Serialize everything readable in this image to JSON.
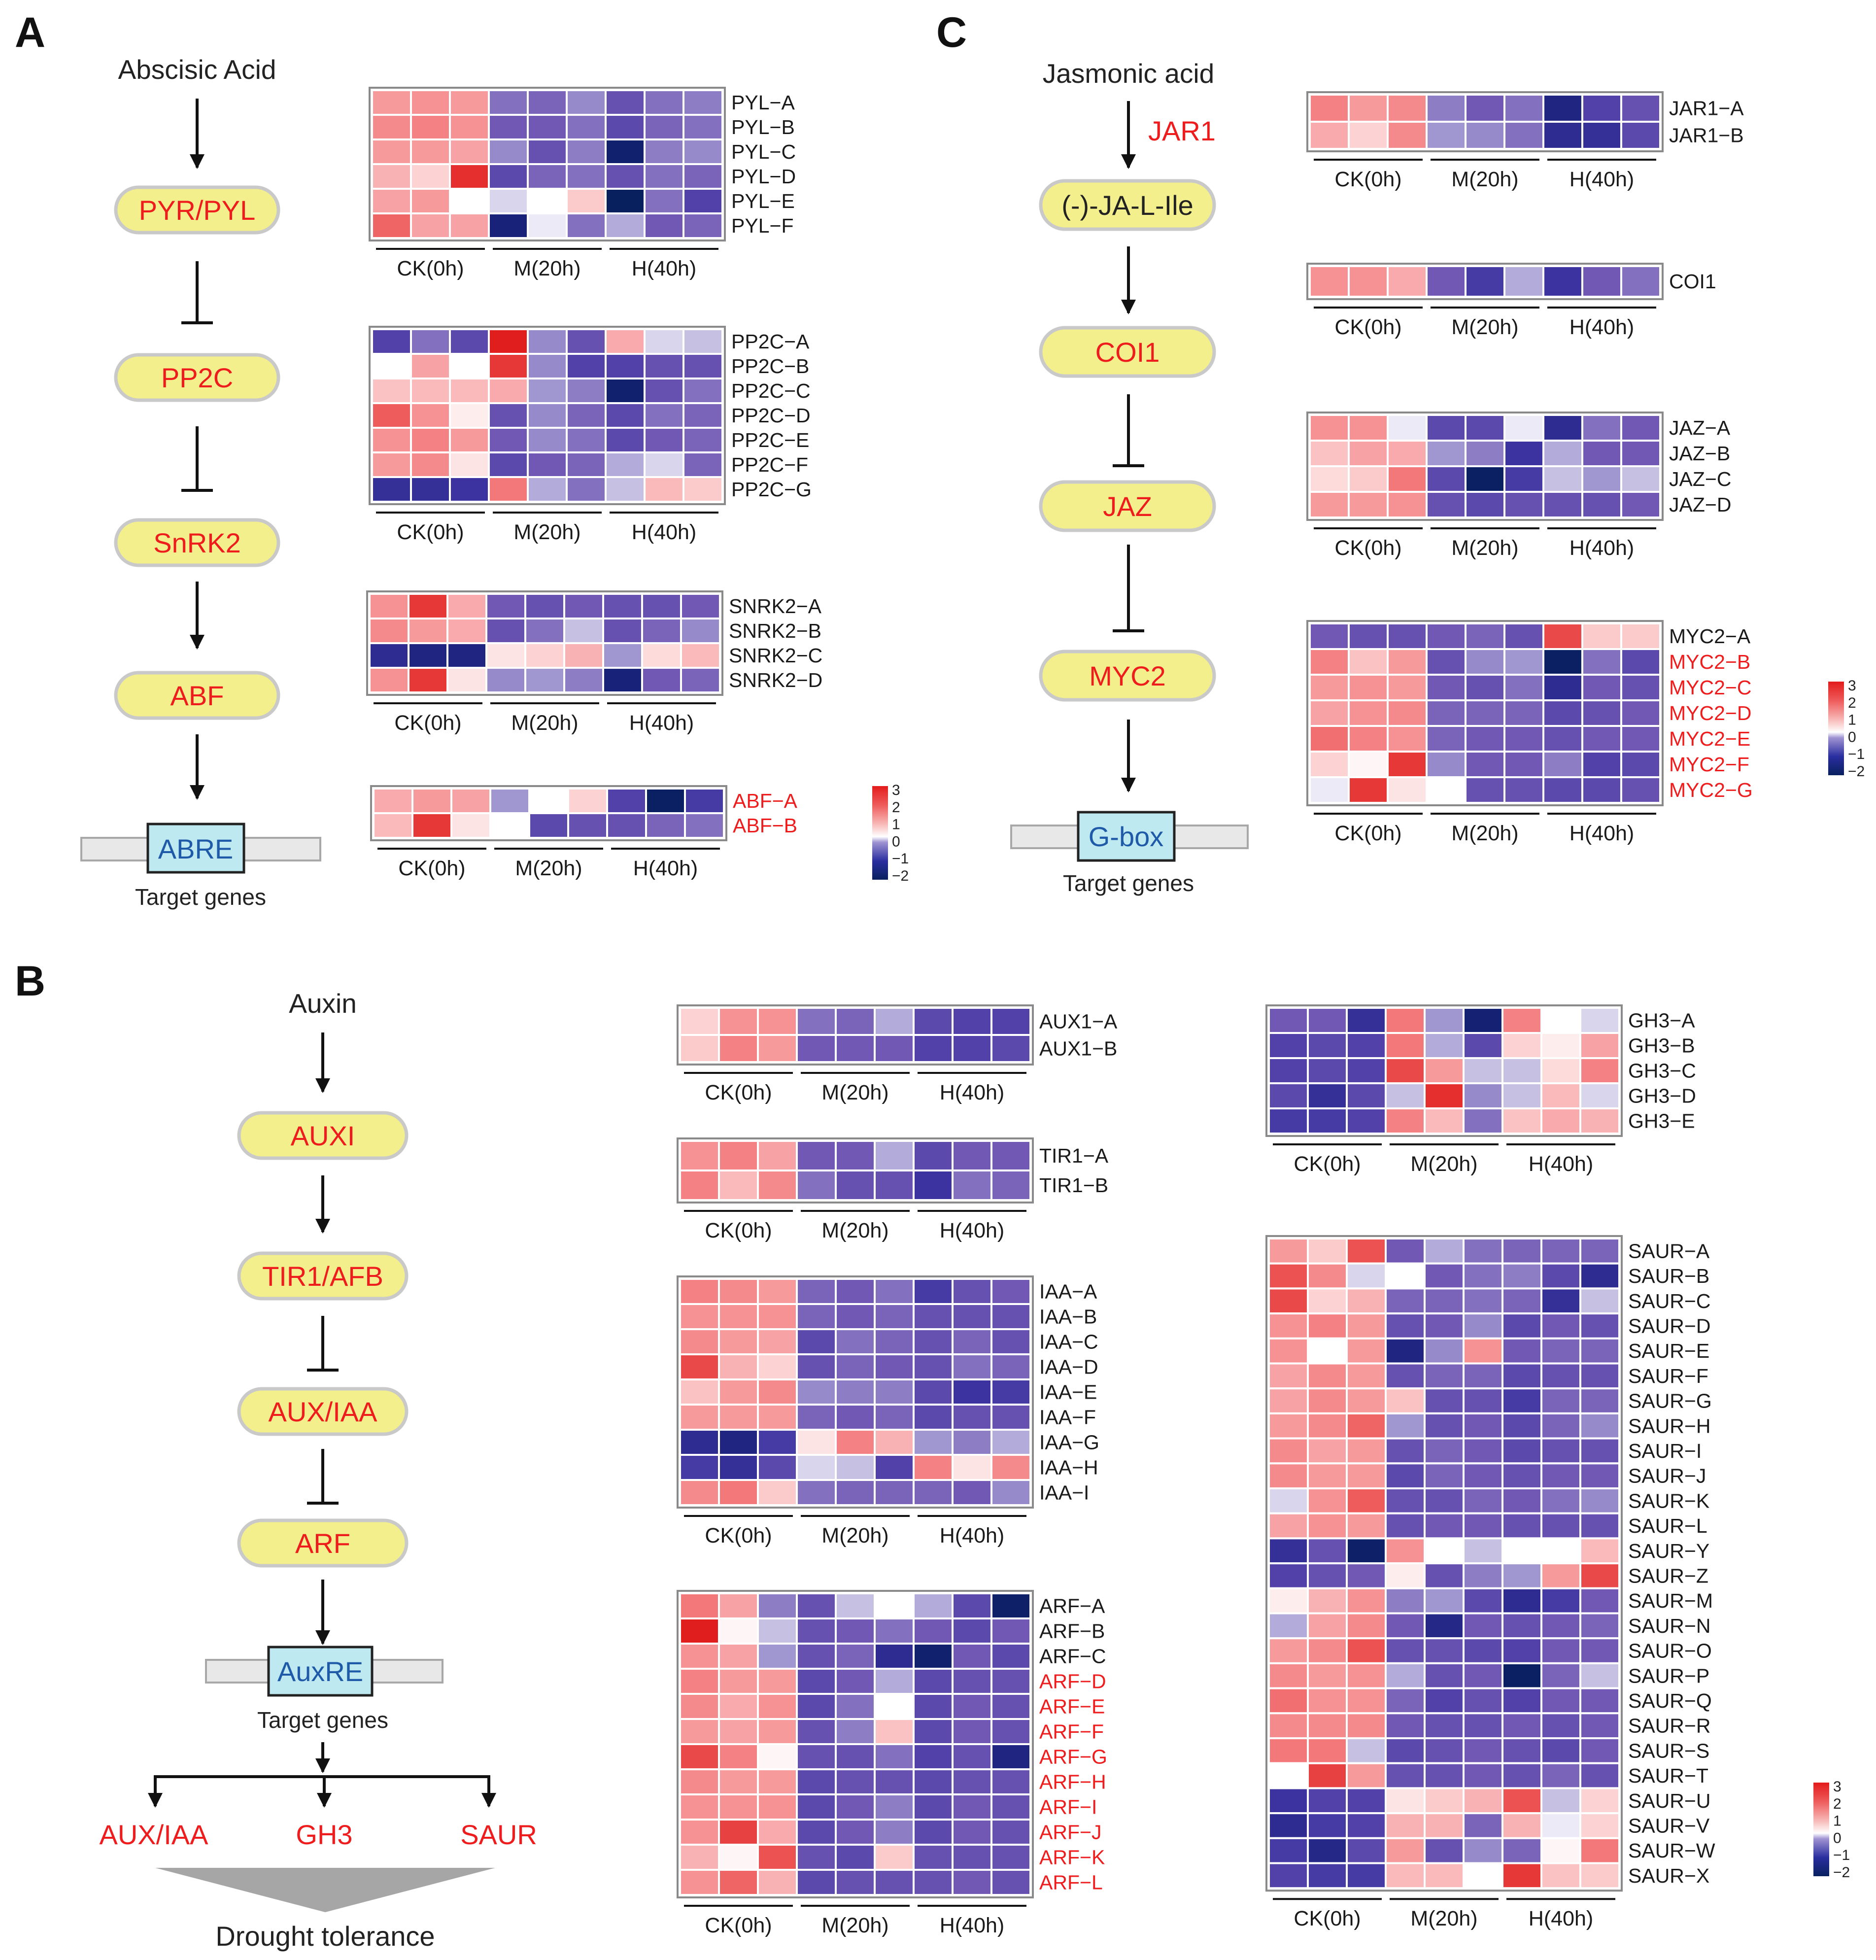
{
  "panels": {
    "A": {
      "label": "A",
      "signal": "Abscisic Acid",
      "nodes": [
        "PYR/PYL",
        "PP2C",
        "SnRK2",
        "ABF"
      ],
      "element": "ABRE",
      "target": "Target genes"
    },
    "B": {
      "label": "B",
      "signal": "Auxin",
      "nodes": [
        "AUXI",
        "TIR1/AFB",
        "AUX/IAA",
        "ARF"
      ],
      "element": "AuxRE",
      "target": "Target genes",
      "outputs": [
        "AUX/IAA",
        "GH3",
        "SAUR"
      ],
      "outcome": "Drought tolerance"
    },
    "C": {
      "label": "C",
      "signal": "Jasmonic acid",
      "enzyme": "JAR1",
      "nodes": [
        "(-)-JA-L-Ile",
        "COI1",
        "JAZ",
        "MYC2"
      ],
      "element": "G-box",
      "target": "Target genes"
    }
  },
  "groups": [
    "CK(0h)",
    "M(20h)",
    "H(40h)"
  ],
  "legend_ticks": [
    "3",
    "2",
    "1",
    "0",
    "−1",
    "−2"
  ],
  "heatmaps": [
    {
      "id": "pyl",
      "genes": [
        "PYL−A",
        "PYL−B",
        "PYL−C",
        "PYL−D",
        "PYL−E",
        "PYL−F"
      ],
      "red_genes": [],
      "values": [
        [
          1.2,
          1.3,
          1.2,
          -0.8,
          -0.9,
          -0.6,
          -1.1,
          -0.8,
          -0.7
        ],
        [
          1.4,
          1.5,
          1.3,
          -1.0,
          -1.0,
          -0.8,
          -1.2,
          -0.9,
          -0.8
        ],
        [
          1.2,
          1.2,
          1.1,
          -0.6,
          -1.1,
          -0.7,
          -2.2,
          -0.7,
          -0.6
        ],
        [
          0.9,
          0.5,
          2.4,
          -1.2,
          -0.9,
          -0.8,
          -1.1,
          -0.8,
          -0.9
        ],
        [
          1.1,
          1.2,
          0.0,
          -0.2,
          0.0,
          0.6,
          -2.6,
          -0.8,
          -1.3
        ],
        [
          1.8,
          1.1,
          1.1,
          -2.0,
          -0.1,
          -0.8,
          -0.4,
          -1.0,
          -0.9
        ]
      ]
    },
    {
      "id": "pp2c",
      "genes": [
        "PP2C−A",
        "PP2C−B",
        "PP2C−C",
        "PP2C−D",
        "PP2C−E",
        "PP2C−F",
        "PP2C−G"
      ],
      "red_genes": [],
      "values": [
        [
          -1.3,
          -0.8,
          -1.2,
          2.6,
          -0.6,
          -1.1,
          1.0,
          -0.2,
          -0.3
        ],
        [
          0.0,
          1.1,
          0.0,
          2.3,
          -0.6,
          -1.3,
          -1.3,
          -1.1,
          -1.1
        ],
        [
          0.7,
          0.8,
          0.8,
          1.0,
          -0.5,
          -0.7,
          -2.2,
          -1.1,
          -0.8
        ],
        [
          1.9,
          1.3,
          0.2,
          -1.1,
          -0.6,
          -0.9,
          -1.2,
          -0.8,
          -0.9
        ],
        [
          1.3,
          1.5,
          1.2,
          -1.0,
          -0.6,
          -0.8,
          -1.2,
          -1.0,
          -0.9
        ],
        [
          1.2,
          1.4,
          0.3,
          -1.2,
          -1.0,
          -0.9,
          -0.4,
          -0.2,
          -0.9
        ],
        [
          -1.6,
          -1.6,
          -1.5,
          1.6,
          -0.4,
          -0.8,
          -0.3,
          0.8,
          0.6
        ]
      ]
    },
    {
      "id": "snrk2",
      "genes": [
        "SNRK2−A",
        "SNRK2−B",
        "SNRK2−C",
        "SNRK2−D"
      ],
      "red_genes": [],
      "values": [
        [
          1.3,
          2.3,
          1.0,
          -1.0,
          -1.1,
          -1.0,
          -1.1,
          -1.1,
          -1.0
        ],
        [
          1.4,
          1.2,
          1.0,
          -1.1,
          -0.8,
          -0.3,
          -1.1,
          -0.9,
          -0.6
        ],
        [
          -1.7,
          -1.9,
          -1.9,
          0.3,
          0.5,
          0.9,
          -0.5,
          0.4,
          0.8
        ],
        [
          1.3,
          2.3,
          0.3,
          -0.6,
          -0.5,
          -0.7,
          -2.0,
          -1.0,
          -0.9
        ]
      ]
    },
    {
      "id": "abf",
      "genes": [
        "ABF−A",
        "ABF−B"
      ],
      "red_genes": [
        "ABF−A",
        "ABF−B"
      ],
      "values": [
        [
          1.0,
          1.2,
          1.1,
          -0.5,
          0.0,
          0.5,
          -1.3,
          -2.4,
          -1.4
        ],
        [
          0.8,
          2.3,
          0.3,
          0.0,
          -1.2,
          -1.1,
          -1.1,
          -0.9,
          -0.8
        ]
      ]
    },
    {
      "id": "jar1",
      "genes": [
        "JAR1−A",
        "JAR1−B"
      ],
      "red_genes": [],
      "values": [
        [
          1.5,
          1.2,
          1.4,
          -0.7,
          -1.0,
          -0.8,
          -1.9,
          -1.3,
          -1.1
        ],
        [
          1.0,
          0.5,
          1.4,
          -0.5,
          -0.6,
          -0.8,
          -1.7,
          -1.6,
          -1.2
        ]
      ]
    },
    {
      "id": "coi1",
      "genes": [
        "COI1"
      ],
      "red_genes": [],
      "values": [
        [
          1.3,
          1.3,
          1.0,
          -1.0,
          -1.4,
          -0.4,
          -1.5,
          -1.0,
          -0.8
        ]
      ]
    },
    {
      "id": "jaz",
      "genes": [
        "JAZ−A",
        "JAZ−B",
        "JAZ−C",
        "JAZ−D"
      ],
      "red_genes": [],
      "values": [
        [
          1.3,
          1.3,
          -0.1,
          -1.2,
          -1.2,
          -0.1,
          -1.7,
          -0.8,
          -1.0
        ],
        [
          0.7,
          1.1,
          1.0,
          -0.5,
          -0.7,
          -1.5,
          -0.4,
          -1.0,
          -1.0
        ],
        [
          0.4,
          0.6,
          1.6,
          -1.2,
          -2.4,
          -1.4,
          -0.3,
          -0.5,
          -0.3
        ],
        [
          1.2,
          1.2,
          1.3,
          -1.1,
          -1.2,
          -1.1,
          -1.1,
          -1.1,
          -1.0
        ]
      ]
    },
    {
      "id": "myc2",
      "genes": [
        "MYC2−A",
        "MYC2−B",
        "MYC2−C",
        "MYC2−D",
        "MYC2−E",
        "MYC2−F",
        "MYC2−G"
      ],
      "red_genes": [
        "MYC2−B",
        "MYC2−C",
        "MYC2−D",
        "MYC2−E",
        "MYC2−F",
        "MYC2−G"
      ],
      "values": [
        [
          -1.0,
          -1.1,
          -1.1,
          -1.0,
          -0.9,
          -1.1,
          2.1,
          0.6,
          0.6
        ],
        [
          1.5,
          0.7,
          1.2,
          -1.1,
          -0.6,
          -0.5,
          -2.4,
          -0.8,
          -1.2
        ],
        [
          1.2,
          1.3,
          1.2,
          -1.0,
          -1.1,
          -0.8,
          -1.7,
          -1.0,
          -1.1
        ],
        [
          1.1,
          1.3,
          1.4,
          -0.9,
          -0.9,
          -0.9,
          -1.2,
          -1.1,
          -1.0
        ],
        [
          1.7,
          1.5,
          1.3,
          -0.9,
          -1.0,
          -1.0,
          -1.1,
          -1.0,
          -1.0
        ],
        [
          0.5,
          0.1,
          2.3,
          -0.6,
          -1.0,
          -1.0,
          -0.7,
          -1.3,
          -1.2
        ],
        [
          -0.1,
          2.3,
          0.3,
          0.0,
          -1.1,
          -1.1,
          -1.2,
          -1.2,
          -1.1
        ]
      ]
    },
    {
      "id": "aux1",
      "genes": [
        "AUX1−A",
        "AUX1−B"
      ],
      "red_genes": [],
      "values": [
        [
          0.5,
          1.3,
          1.3,
          -0.8,
          -0.9,
          -0.4,
          -1.2,
          -1.3,
          -1.3
        ],
        [
          0.6,
          1.5,
          1.2,
          -1.0,
          -1.0,
          -1.0,
          -1.3,
          -1.3,
          -1.2
        ]
      ]
    },
    {
      "id": "tir1",
      "genes": [
        "TIR1−A",
        "TIR1−B"
      ],
      "red_genes": [],
      "values": [
        [
          1.3,
          1.5,
          1.1,
          -1.0,
          -1.0,
          -0.4,
          -1.2,
          -1.0,
          -1.0
        ],
        [
          1.5,
          0.8,
          1.4,
          -0.8,
          -1.1,
          -1.1,
          -1.5,
          -0.8,
          -0.9
        ]
      ]
    },
    {
      "id": "iaa",
      "genes": [
        "IAA−A",
        "IAA−B",
        "IAA−C",
        "IAA−D",
        "IAA−E",
        "IAA−F",
        "IAA−G",
        "IAA−H",
        "IAA−I"
      ],
      "red_genes": [],
      "values": [
        [
          1.5,
          1.4,
          1.2,
          -0.9,
          -1.0,
          -0.8,
          -1.4,
          -1.1,
          -1.0
        ],
        [
          1.3,
          1.3,
          1.3,
          -0.9,
          -1.0,
          -0.9,
          -1.1,
          -1.1,
          -1.1
        ],
        [
          1.4,
          1.2,
          1.1,
          -1.2,
          -0.8,
          -0.9,
          -1.1,
          -0.9,
          -1.1
        ],
        [
          2.1,
          0.9,
          0.5,
          -1.1,
          -0.9,
          -1.0,
          -1.1,
          -0.8,
          -0.9
        ],
        [
          0.7,
          1.2,
          1.4,
          -0.6,
          -0.7,
          -0.7,
          -1.2,
          -1.5,
          -1.4
        ],
        [
          1.2,
          1.2,
          1.2,
          -0.9,
          -1.0,
          -0.9,
          -1.2,
          -1.1,
          -1.1
        ],
        [
          -1.7,
          -1.9,
          -1.4,
          0.3,
          1.5,
          0.9,
          -0.5,
          -0.7,
          -0.4
        ],
        [
          -1.4,
          -1.6,
          -1.2,
          -0.2,
          -0.3,
          -1.3,
          1.5,
          0.3,
          1.4
        ],
        [
          1.4,
          1.6,
          0.6,
          -0.8,
          -0.9,
          -0.9,
          -0.9,
          -1.0,
          -0.6
        ]
      ]
    },
    {
      "id": "arf",
      "genes": [
        "ARF−A",
        "ARF−B",
        "ARF−C",
        "ARF−D",
        "ARF−E",
        "ARF−F",
        "ARF−G",
        "ARF−H",
        "ARF−I",
        "ARF−J",
        "ARF−K",
        "ARF−L"
      ],
      "red_genes": [
        "ARF−D",
        "ARF−E",
        "ARF−F",
        "ARF−G",
        "ARF−H",
        "ARF−I",
        "ARF−J",
        "ARF−K",
        "ARF−L"
      ],
      "values": [
        [
          1.6,
          1.1,
          -0.7,
          -1.1,
          -0.3,
          0.0,
          -0.4,
          -1.2,
          -2.3
        ],
        [
          2.6,
          0.1,
          -0.3,
          -1.1,
          -1.0,
          -0.8,
          -1.0,
          -1.2,
          -1.0
        ],
        [
          1.3,
          1.1,
          -0.5,
          -1.1,
          -0.9,
          -1.7,
          -2.2,
          -1.0,
          -1.2
        ],
        [
          1.5,
          1.2,
          1.2,
          -1.2,
          -1.0,
          -0.4,
          -1.2,
          -1.1,
          -1.1
        ],
        [
          1.4,
          1.0,
          1.3,
          -1.2,
          -0.8,
          0.0,
          -1.2,
          -1.0,
          -1.1
        ],
        [
          1.2,
          1.1,
          1.2,
          -1.1,
          -0.7,
          0.7,
          -1.2,
          -1.0,
          -1.1
        ],
        [
          2.1,
          1.5,
          0.1,
          -1.1,
          -1.1,
          -0.8,
          -1.3,
          -1.1,
          -1.9
        ],
        [
          1.4,
          1.2,
          1.2,
          -1.2,
          -1.1,
          -1.1,
          -1.2,
          -1.1,
          -1.1
        ],
        [
          1.3,
          1.3,
          1.3,
          -1.2,
          -1.0,
          -0.7,
          -1.2,
          -1.0,
          -1.1
        ],
        [
          1.3,
          2.2,
          1.0,
          -1.2,
          -1.0,
          -0.7,
          -1.2,
          -1.0,
          -1.1
        ],
        [
          0.9,
          0.1,
          2.0,
          -1.1,
          -1.2,
          0.6,
          -1.1,
          -1.1,
          -1.1
        ],
        [
          1.3,
          1.8,
          0.9,
          -1.2,
          -1.1,
          -1.1,
          -1.1,
          -1.0,
          -1.1
        ]
      ]
    },
    {
      "id": "gh3",
      "genes": [
        "GH3−A",
        "GH3−B",
        "GH3−C",
        "GH3−D",
        "GH3−E"
      ],
      "red_genes": [],
      "values": [
        [
          -1.0,
          -1.0,
          -1.6,
          1.6,
          -0.5,
          -2.1,
          1.5,
          0.0,
          -0.2
        ],
        [
          -1.3,
          -1.2,
          -1.3,
          1.6,
          -0.4,
          -1.2,
          0.5,
          0.2,
          1.1
        ],
        [
          -1.3,
          -1.2,
          -1.3,
          2.1,
          1.2,
          -0.3,
          -0.3,
          0.4,
          1.5
        ],
        [
          -1.2,
          -1.6,
          -1.2,
          -0.3,
          2.4,
          -0.6,
          -0.3,
          0.8,
          -0.2
        ],
        [
          -1.4,
          -1.4,
          -1.3,
          1.5,
          0.8,
          -0.8,
          0.7,
          1.0,
          0.9
        ]
      ]
    },
    {
      "id": "saur",
      "genes": [
        "SAUR−A",
        "SAUR−B",
        "SAUR−C",
        "SAUR−D",
        "SAUR−E",
        "SAUR−F",
        "SAUR−G",
        "SAUR−H",
        "SAUR−I",
        "SAUR−J",
        "SAUR−K",
        "SAUR−L",
        "SAUR−Y",
        "SAUR−Z",
        "SAUR−M",
        "SAUR−N",
        "SAUR−O",
        "SAUR−P",
        "SAUR−Q",
        "SAUR−R",
        "SAUR−S",
        "SAUR−T",
        "SAUR−U",
        "SAUR−V",
        "SAUR−W",
        "SAUR−X"
      ],
      "red_genes": [],
      "values": [
        [
          1.2,
          0.6,
          2.0,
          -1.0,
          -0.4,
          -0.8,
          -0.9,
          -0.9,
          -0.9
        ],
        [
          2.0,
          1.4,
          -0.2,
          0.0,
          -1.0,
          -0.8,
          -0.7,
          -1.2,
          -1.7
        ],
        [
          2.1,
          0.5,
          0.9,
          -0.9,
          -0.9,
          -0.8,
          -0.9,
          -1.6,
          -0.3
        ],
        [
          1.3,
          1.5,
          1.2,
          -1.1,
          -1.0,
          -0.6,
          -1.2,
          -1.0,
          -1.1
        ],
        [
          1.3,
          0.0,
          1.2,
          -1.9,
          -0.6,
          1.3,
          -1.0,
          -0.9,
          -0.9
        ],
        [
          1.1,
          1.4,
          1.2,
          -1.1,
          -0.9,
          -0.9,
          -1.2,
          -1.1,
          -1.1
        ],
        [
          1.1,
          1.4,
          1.2,
          0.7,
          -1.1,
          -1.1,
          -1.4,
          -0.9,
          -0.9
        ],
        [
          1.2,
          1.4,
          1.8,
          -0.5,
          -1.1,
          -1.0,
          -1.2,
          -0.9,
          -0.6
        ],
        [
          1.4,
          1.1,
          1.2,
          -1.1,
          -0.9,
          -1.0,
          -1.2,
          -1.1,
          -1.1
        ],
        [
          1.4,
          1.2,
          1.2,
          -1.2,
          -0.9,
          -1.0,
          -1.1,
          -1.0,
          -1.0
        ],
        [
          -0.2,
          1.3,
          1.9,
          -1.1,
          -1.1,
          -0.9,
          -1.0,
          -0.8,
          -0.6
        ],
        [
          1.1,
          1.3,
          1.2,
          -1.1,
          -1.0,
          -1.0,
          -1.1,
          -1.1,
          -1.1
        ],
        [
          -1.6,
          -1.1,
          -2.3,
          1.3,
          0.0,
          -0.3,
          0.0,
          0.0,
          0.8
        ],
        [
          -1.3,
          -1.1,
          -1.0,
          0.2,
          -1.1,
          -0.7,
          -0.5,
          1.2,
          2.1
        ],
        [
          0.2,
          0.9,
          1.3,
          -0.7,
          -0.5,
          -1.2,
          -1.7,
          -1.4,
          -1.0
        ],
        [
          -0.4,
          1.1,
          1.4,
          -1.0,
          -1.8,
          -1.0,
          -1.1,
          -1.0,
          -0.9
        ],
        [
          1.2,
          1.4,
          2.0,
          -1.1,
          -1.1,
          -1.2,
          -1.3,
          -1.0,
          -1.0
        ],
        [
          1.4,
          1.2,
          1.3,
          -0.4,
          -1.1,
          -1.0,
          -2.4,
          -0.9,
          -0.3
        ],
        [
          1.7,
          1.3,
          1.3,
          -0.9,
          -1.3,
          -1.1,
          -1.3,
          -1.0,
          -1.0
        ],
        [
          1.4,
          1.4,
          1.4,
          -1.0,
          -1.1,
          -1.1,
          -1.0,
          -1.1,
          -1.0
        ],
        [
          1.6,
          1.6,
          -0.3,
          -1.2,
          -1.1,
          -1.0,
          -1.1,
          -1.2,
          -1.0
        ],
        [
          0.0,
          2.2,
          1.2,
          -1.1,
          -1.1,
          -1.0,
          -1.1,
          -0.9,
          -1.1
        ],
        [
          -1.5,
          -1.3,
          -1.3,
          0.3,
          0.6,
          0.9,
          2.0,
          -0.3,
          0.5
        ],
        [
          -1.7,
          -1.4,
          -1.3,
          0.9,
          0.9,
          -0.9,
          0.9,
          -0.1,
          0.5
        ],
        [
          -1.4,
          -1.8,
          -1.2,
          1.2,
          -1.1,
          -0.6,
          -0.9,
          0.1,
          1.6
        ],
        [
          -1.3,
          -1.4,
          -1.4,
          0.8,
          0.8,
          0.0,
          2.3,
          0.7,
          0.6
        ]
      ]
    }
  ]
}
